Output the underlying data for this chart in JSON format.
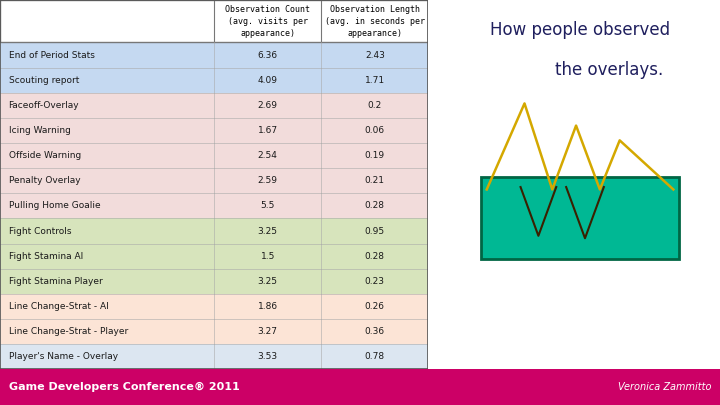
{
  "rows": [
    {
      "label": "End of Period Stats",
      "count": "6.36",
      "length": "2.43",
      "color": "#c5d9f1"
    },
    {
      "label": "Scouting report",
      "count": "4.09",
      "length": "1.71",
      "color": "#c5d9f1"
    },
    {
      "label": "Faceoff-Overlay",
      "count": "2.69",
      "length": "0.2",
      "color": "#f2dcdb"
    },
    {
      "label": "Icing Warning",
      "count": "1.67",
      "length": "0.06",
      "color": "#f2dcdb"
    },
    {
      "label": "Offside Warning",
      "count": "2.54",
      "length": "0.19",
      "color": "#f2dcdb"
    },
    {
      "label": "Penalty Overlay",
      "count": "2.59",
      "length": "0.21",
      "color": "#f2dcdb"
    },
    {
      "label": "Pulling Home Goalie",
      "count": "5.5",
      "length": "0.28",
      "color": "#f2dcdb"
    },
    {
      "label": "Fight Controls",
      "count": "3.25",
      "length": "0.95",
      "color": "#d7e4bc"
    },
    {
      "label": "Fight Stamina AI",
      "count": "1.5",
      "length": "0.28",
      "color": "#d7e4bc"
    },
    {
      "label": "Fight Stamina Player",
      "count": "3.25",
      "length": "0.23",
      "color": "#d7e4bc"
    },
    {
      "label": "Line Change-Strat - AI",
      "count": "1.86",
      "length": "0.26",
      "color": "#fce4d6"
    },
    {
      "label": "Line Change-Strat - Player",
      "count": "3.27",
      "length": "0.36",
      "color": "#fce4d6"
    },
    {
      "label": "Player's Name - Overlay",
      "count": "3.53",
      "length": "0.78",
      "color": "#dce6f1"
    }
  ],
  "col1_header": "Observation Count\n(avg. visits per\nappearance)",
  "col2_header": "Observation Length\n(avg. in seconds per\nappearance)",
  "right_text_line1": "How people observed",
  "right_text_line2": "the overlays.",
  "footer_text": "Game Developers Conference® 2011",
  "footer_right": "Veronica Zammitto",
  "footer_bg": "#cc0066",
  "background_color": "#ffffff",
  "text_color": "#1f1f5e",
  "green_rect_color": "#00b894",
  "green_rect_edge": "#006644",
  "yellow_line_color": "#d4a800",
  "dark_line_color": "#3a2000"
}
